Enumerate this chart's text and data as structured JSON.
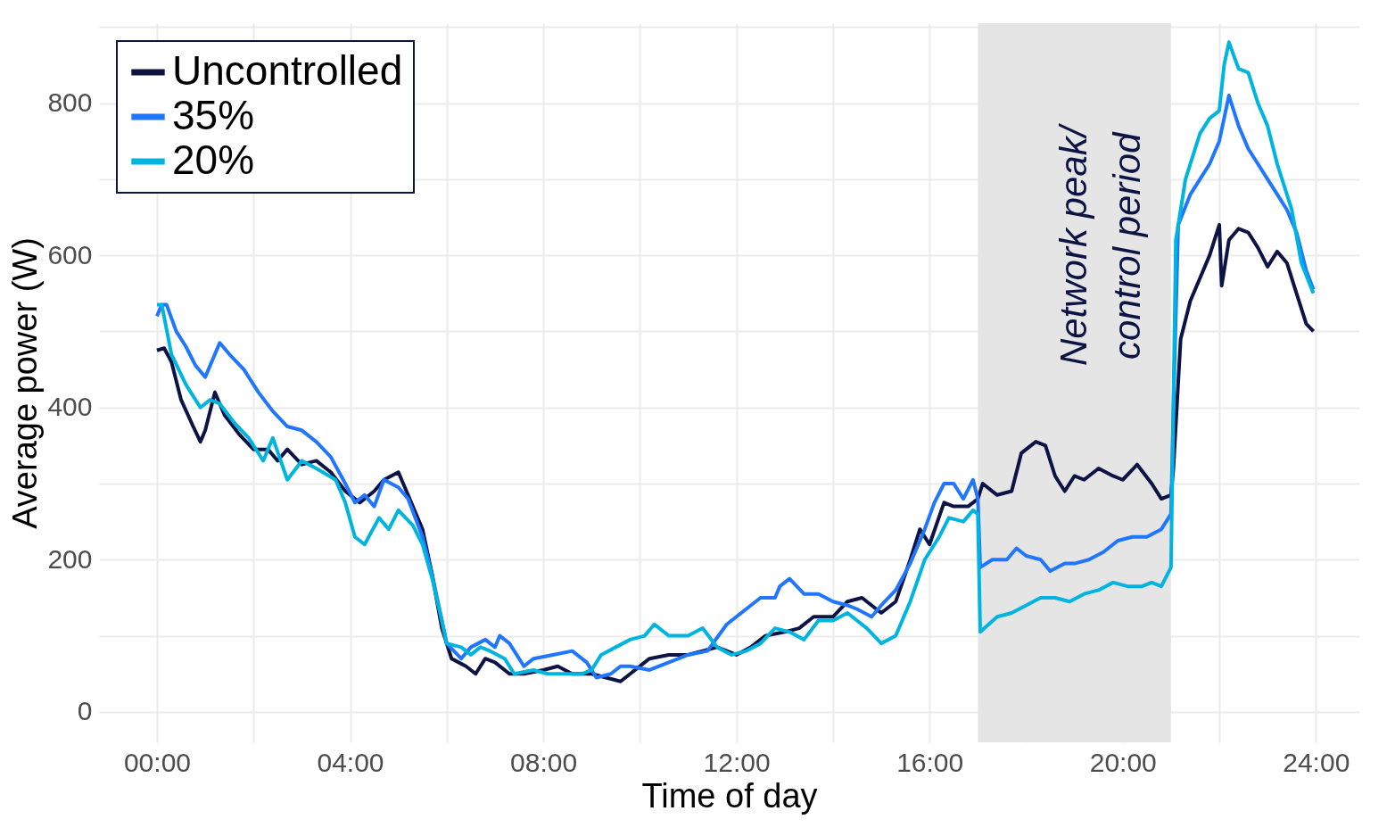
{
  "chart_data": {
    "type": "line",
    "xlabel": "Time of day",
    "ylabel": "Average power (W)",
    "xlim": [
      -1.2,
      24.9
    ],
    "ylim": [
      -40,
      905
    ],
    "xticks": [
      {
        "value": 0,
        "label": "00:00"
      },
      {
        "value": 2,
        "label": null
      },
      {
        "value": 4,
        "label": "04:00"
      },
      {
        "value": 6,
        "label": null
      },
      {
        "value": 8,
        "label": "08:00"
      },
      {
        "value": 10,
        "label": null
      },
      {
        "value": 12,
        "label": "12:00"
      },
      {
        "value": 14,
        "label": null
      },
      {
        "value": 16,
        "label": "16:00"
      },
      {
        "value": 18,
        "label": null
      },
      {
        "value": 20,
        "label": "20:00"
      },
      {
        "value": 22,
        "label": null
      },
      {
        "value": 24,
        "label": "24:00"
      }
    ],
    "yticks": [
      0,
      {
        "value": 100,
        "label": null
      },
      200,
      {
        "value": 300,
        "label": null
      },
      400,
      {
        "value": 500,
        "label": null
      },
      600,
      {
        "value": 700,
        "label": null
      },
      800,
      {
        "value": 900,
        "label": null
      }
    ],
    "grid": true,
    "legend": "top left",
    "line_style": "solid",
    "marker": "none",
    "bands": [
      {
        "axis": "x",
        "from": 17,
        "to": 21,
        "label": "Network peak/\ncontrol period",
        "color": "#e5e5e5"
      }
    ],
    "series": [
      {
        "name": "Uncontrolled",
        "color": "#0d1445",
        "x": [
          0.0,
          0.15,
          0.3,
          0.5,
          0.75,
          0.9,
          1.0,
          1.2,
          1.4,
          1.7,
          2.0,
          2.3,
          2.5,
          2.7,
          3.0,
          3.3,
          3.6,
          3.9,
          4.2,
          4.5,
          4.7,
          5.0,
          5.2,
          5.5,
          5.7,
          5.9,
          6.1,
          6.4,
          6.6,
          6.8,
          7.0,
          7.3,
          7.6,
          8.0,
          8.3,
          8.6,
          9.0,
          9.3,
          9.6,
          9.8,
          10.2,
          10.6,
          11.0,
          11.3,
          11.6,
          12.0,
          12.3,
          12.6,
          13.0,
          13.3,
          13.6,
          14.0,
          14.3,
          14.6,
          15.0,
          15.3,
          15.6,
          15.8,
          16.0,
          16.3,
          16.5,
          16.8,
          17.0,
          17.1,
          17.4,
          17.7,
          17.9,
          18.2,
          18.4,
          18.6,
          18.8,
          19.0,
          19.2,
          19.5,
          19.8,
          20.0,
          20.3,
          20.6,
          20.8,
          21.0,
          21.05,
          21.2,
          21.4,
          21.6,
          21.8,
          22.0,
          22.05,
          22.2,
          22.4,
          22.6,
          22.8,
          23.0,
          23.2,
          23.4,
          23.6,
          23.8,
          23.95
        ],
        "values": [
          475,
          478,
          460,
          410,
          375,
          355,
          370,
          420,
          390,
          365,
          345,
          345,
          330,
          345,
          325,
          330,
          315,
          290,
          275,
          290,
          305,
          315,
          285,
          240,
          180,
          110,
          70,
          60,
          50,
          70,
          65,
          50,
          50,
          55,
          60,
          50,
          50,
          45,
          40,
          50,
          70,
          75,
          75,
          80,
          85,
          75,
          85,
          100,
          105,
          110,
          125,
          125,
          145,
          150,
          130,
          145,
          200,
          240,
          220,
          275,
          270,
          270,
          280,
          300,
          285,
          290,
          340,
          355,
          350,
          310,
          290,
          310,
          305,
          320,
          310,
          305,
          325,
          300,
          280,
          285,
          320,
          490,
          540,
          570,
          600,
          640,
          560,
          620,
          635,
          630,
          610,
          585,
          605,
          590,
          550,
          510,
          500
        ]
      },
      {
        "name": "35%",
        "color": "#2176ff",
        "x": [
          0.0,
          0.1,
          0.2,
          0.4,
          0.6,
          0.8,
          1.0,
          1.3,
          1.5,
          1.8,
          2.1,
          2.4,
          2.7,
          3.0,
          3.3,
          3.6,
          3.9,
          4.1,
          4.3,
          4.5,
          4.7,
          5.0,
          5.2,
          5.5,
          5.7,
          5.9,
          6.0,
          6.3,
          6.5,
          6.8,
          7.0,
          7.1,
          7.3,
          7.6,
          7.8,
          8.2,
          8.6,
          8.9,
          9.1,
          9.4,
          9.6,
          9.8,
          10.2,
          10.6,
          11.0,
          11.4,
          11.8,
          12.2,
          12.5,
          12.8,
          12.9,
          13.1,
          13.4,
          13.7,
          14.0,
          14.3,
          14.5,
          14.8,
          15.0,
          15.3,
          15.6,
          15.9,
          16.1,
          16.3,
          16.5,
          16.7,
          16.9,
          17.0,
          17.05,
          17.3,
          17.6,
          17.8,
          18.0,
          18.3,
          18.5,
          18.8,
          19.0,
          19.3,
          19.6,
          19.9,
          20.2,
          20.5,
          20.8,
          21.0,
          21.05,
          21.15,
          21.4,
          21.6,
          21.8,
          22.0,
          22.2,
          22.4,
          22.6,
          22.8,
          23.0,
          23.2,
          23.4,
          23.6,
          23.8,
          23.95
        ],
        "values": [
          520,
          535,
          535,
          500,
          480,
          455,
          440,
          485,
          470,
          450,
          420,
          395,
          375,
          370,
          355,
          335,
          300,
          275,
          285,
          270,
          305,
          295,
          280,
          230,
          180,
          120,
          90,
          70,
          85,
          95,
          85,
          100,
          90,
          60,
          70,
          75,
          80,
          65,
          45,
          50,
          60,
          60,
          55,
          65,
          75,
          80,
          115,
          135,
          150,
          150,
          165,
          175,
          155,
          155,
          145,
          140,
          135,
          125,
          140,
          160,
          195,
          240,
          275,
          300,
          300,
          280,
          305,
          280,
          190,
          200,
          200,
          215,
          205,
          200,
          185,
          195,
          195,
          200,
          210,
          225,
          230,
          230,
          240,
          260,
          400,
          640,
          680,
          700,
          720,
          750,
          810,
          770,
          740,
          720,
          700,
          680,
          660,
          630,
          580,
          555
        ]
      },
      {
        "name": "20%",
        "color": "#00b4e0",
        "x": [
          0.0,
          0.1,
          0.3,
          0.6,
          0.9,
          1.1,
          1.3,
          1.6,
          1.9,
          2.2,
          2.4,
          2.7,
          3.0,
          3.3,
          3.7,
          3.9,
          4.1,
          4.3,
          4.6,
          4.8,
          5.0,
          5.3,
          5.5,
          5.7,
          5.9,
          6.0,
          6.3,
          6.5,
          6.7,
          6.9,
          7.2,
          7.4,
          7.8,
          8.1,
          8.4,
          8.8,
          9.0,
          9.2,
          9.5,
          9.8,
          10.1,
          10.3,
          10.6,
          11.0,
          11.3,
          11.6,
          11.9,
          12.2,
          12.5,
          12.8,
          13.1,
          13.4,
          13.7,
          14.0,
          14.3,
          14.7,
          15.0,
          15.3,
          15.6,
          15.9,
          16.2,
          16.4,
          16.7,
          16.9,
          17.0,
          17.05,
          17.4,
          17.7,
          18.0,
          18.3,
          18.6,
          18.9,
          19.2,
          19.5,
          19.8,
          20.1,
          20.4,
          20.6,
          20.8,
          21.0,
          21.1,
          21.3,
          21.6,
          21.8,
          22.0,
          22.1,
          22.2,
          22.4,
          22.6,
          22.8,
          23.0,
          23.2,
          23.5,
          23.7,
          23.95
        ],
        "values": [
          535,
          535,
          470,
          430,
          400,
          410,
          405,
          380,
          360,
          330,
          360,
          305,
          330,
          320,
          305,
          275,
          230,
          220,
          255,
          240,
          265,
          245,
          220,
          175,
          120,
          90,
          85,
          75,
          85,
          80,
          70,
          50,
          55,
          50,
          50,
          50,
          55,
          75,
          85,
          95,
          100,
          115,
          100,
          100,
          110,
          85,
          75,
          80,
          90,
          110,
          105,
          95,
          120,
          120,
          130,
          110,
          90,
          100,
          145,
          200,
          230,
          255,
          250,
          265,
          260,
          105,
          125,
          130,
          140,
          150,
          150,
          145,
          155,
          160,
          170,
          165,
          165,
          170,
          165,
          190,
          620,
          700,
          760,
          780,
          790,
          850,
          880,
          845,
          840,
          800,
          770,
          720,
          660,
          590,
          550
        ]
      }
    ]
  }
}
